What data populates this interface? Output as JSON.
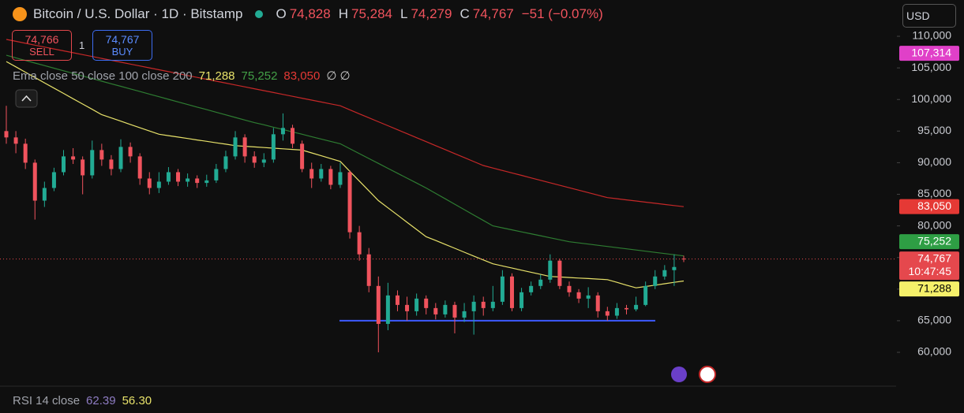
{
  "header": {
    "symbol": "Bitcoin / U.S. Dollar · 1D · Bitstamp",
    "o_label": "O",
    "open": "74,828",
    "h_label": "H",
    "high": "75,284",
    "l_label": "L",
    "low": "74,279",
    "c_label": "C",
    "close": "74,767",
    "change": "−51 (−0.07%)",
    "currency": "USD"
  },
  "trade": {
    "sell_price": "74,766",
    "sell": "SELL",
    "quantity": "1",
    "buy_price": "74,767",
    "buy": "BUY"
  },
  "indicator": {
    "name": "Ema close 50 close 100 close 200",
    "values": [
      "71,288",
      "75,252",
      "83,050"
    ],
    "icons": "∅ ∅"
  },
  "rsi": {
    "name": "RSI 14 close",
    "values": [
      "62.39",
      "56.30"
    ]
  },
  "chart_data": {
    "type": "candlestick",
    "up_color": "#22ab94",
    "down_color": "#f0535d",
    "candles": [
      {
        "o": 95000,
        "h": 99000,
        "l": 93000,
        "c": 94000
      },
      {
        "o": 94000,
        "h": 95000,
        "l": 91500,
        "c": 93000
      },
      {
        "o": 93000,
        "h": 93800,
        "l": 89000,
        "c": 90000
      },
      {
        "o": 90000,
        "h": 90500,
        "l": 81000,
        "c": 84000
      },
      {
        "o": 84000,
        "h": 87000,
        "l": 83000,
        "c": 86000
      },
      {
        "o": 86000,
        "h": 89200,
        "l": 85500,
        "c": 88500
      },
      {
        "o": 88500,
        "h": 92000,
        "l": 88000,
        "c": 91000
      },
      {
        "o": 91000,
        "h": 92300,
        "l": 89800,
        "c": 90500
      },
      {
        "o": 90500,
        "h": 91000,
        "l": 85000,
        "c": 88000
      },
      {
        "o": 88000,
        "h": 93500,
        "l": 87500,
        "c": 92000
      },
      {
        "o": 92000,
        "h": 93000,
        "l": 89500,
        "c": 90500
      },
      {
        "o": 90500,
        "h": 91200,
        "l": 88000,
        "c": 89000
      },
      {
        "o": 89000,
        "h": 93700,
        "l": 88500,
        "c": 92500
      },
      {
        "o": 92500,
        "h": 93200,
        "l": 90000,
        "c": 91000
      },
      {
        "o": 91000,
        "h": 91500,
        "l": 86500,
        "c": 87500
      },
      {
        "o": 87500,
        "h": 88500,
        "l": 85000,
        "c": 86000
      },
      {
        "o": 86000,
        "h": 88500,
        "l": 85200,
        "c": 87000
      },
      {
        "o": 87000,
        "h": 89300,
        "l": 86500,
        "c": 88500
      },
      {
        "o": 88500,
        "h": 89000,
        "l": 86300,
        "c": 87000
      },
      {
        "o": 87000,
        "h": 88300,
        "l": 86200,
        "c": 87500
      },
      {
        "o": 87500,
        "h": 88000,
        "l": 86000,
        "c": 86800
      },
      {
        "o": 86800,
        "h": 88100,
        "l": 86200,
        "c": 87200
      },
      {
        "o": 87200,
        "h": 89800,
        "l": 86800,
        "c": 89000
      },
      {
        "o": 89000,
        "h": 91900,
        "l": 88500,
        "c": 91000
      },
      {
        "o": 91000,
        "h": 95000,
        "l": 90500,
        "c": 94000
      },
      {
        "o": 94000,
        "h": 94500,
        "l": 90000,
        "c": 91000
      },
      {
        "o": 91000,
        "h": 91800,
        "l": 89200,
        "c": 90000
      },
      {
        "o": 90000,
        "h": 91500,
        "l": 89300,
        "c": 90500
      },
      {
        "o": 90500,
        "h": 95500,
        "l": 90000,
        "c": 94500
      },
      {
        "o": 94500,
        "h": 97800,
        "l": 93500,
        "c": 95500
      },
      {
        "o": 95500,
        "h": 96000,
        "l": 92300,
        "c": 93000
      },
      {
        "o": 93000,
        "h": 93500,
        "l": 88500,
        "c": 89000
      },
      {
        "o": 89000,
        "h": 90000,
        "l": 86000,
        "c": 87500
      },
      {
        "o": 87500,
        "h": 89800,
        "l": 87000,
        "c": 89000
      },
      {
        "o": 89000,
        "h": 89500,
        "l": 85800,
        "c": 86500
      },
      {
        "o": 86500,
        "h": 90000,
        "l": 86000,
        "c": 88500
      },
      {
        "o": 88500,
        "h": 88800,
        "l": 78000,
        "c": 79000
      },
      {
        "o": 79000,
        "h": 80000,
        "l": 74500,
        "c": 75500
      },
      {
        "o": 75500,
        "h": 76500,
        "l": 69500,
        "c": 70500
      },
      {
        "o": 70500,
        "h": 72000,
        "l": 60000,
        "c": 64500
      },
      {
        "o": 64500,
        "h": 71000,
        "l": 63500,
        "c": 69000
      },
      {
        "o": 69000,
        "h": 69800,
        "l": 66500,
        "c": 67500
      },
      {
        "o": 67500,
        "h": 68800,
        "l": 65000,
        "c": 66500
      },
      {
        "o": 66500,
        "h": 69300,
        "l": 65800,
        "c": 68500
      },
      {
        "o": 68500,
        "h": 69000,
        "l": 66000,
        "c": 67000
      },
      {
        "o": 67000,
        "h": 67800,
        "l": 65200,
        "c": 66000
      },
      {
        "o": 66000,
        "h": 68200,
        "l": 65500,
        "c": 67500
      },
      {
        "o": 67500,
        "h": 68000,
        "l": 63000,
        "c": 65500
      },
      {
        "o": 65500,
        "h": 67800,
        "l": 64800,
        "c": 66500
      },
      {
        "o": 66500,
        "h": 69000,
        "l": 62800,
        "c": 68000
      },
      {
        "o": 68000,
        "h": 68800,
        "l": 65800,
        "c": 67000
      },
      {
        "o": 67000,
        "h": 70500,
        "l": 66500,
        "c": 68000
      },
      {
        "o": 68000,
        "h": 73000,
        "l": 67500,
        "c": 72000
      },
      {
        "o": 72000,
        "h": 72500,
        "l": 66500,
        "c": 67000
      },
      {
        "o": 67000,
        "h": 70200,
        "l": 66500,
        "c": 69500
      },
      {
        "o": 69500,
        "h": 71200,
        "l": 69000,
        "c": 70500
      },
      {
        "o": 70500,
        "h": 72300,
        "l": 70000,
        "c": 71500
      },
      {
        "o": 71500,
        "h": 75500,
        "l": 71000,
        "c": 74500
      },
      {
        "o": 74500,
        "h": 74800,
        "l": 70000,
        "c": 70500
      },
      {
        "o": 70500,
        "h": 71200,
        "l": 68800,
        "c": 69500
      },
      {
        "o": 69500,
        "h": 70000,
        "l": 67800,
        "c": 68500
      },
      {
        "o": 68500,
        "h": 70300,
        "l": 67000,
        "c": 69000
      },
      {
        "o": 69000,
        "h": 69500,
        "l": 65500,
        "c": 66500
      },
      {
        "o": 66500,
        "h": 67200,
        "l": 65000,
        "c": 65800
      },
      {
        "o": 65800,
        "h": 67800,
        "l": 65300,
        "c": 67000
      },
      {
        "o": 67000,
        "h": 67500,
        "l": 66000,
        "c": 66800
      },
      {
        "o": 66800,
        "h": 68800,
        "l": 66500,
        "c": 67500
      },
      {
        "o": 67500,
        "h": 71200,
        "l": 67300,
        "c": 70500
      },
      {
        "o": 70500,
        "h": 73000,
        "l": 70000,
        "c": 72000
      },
      {
        "o": 72000,
        "h": 73800,
        "l": 71500,
        "c": 73000
      },
      {
        "o": 73000,
        "h": 75500,
        "l": 70500,
        "c": 73500
      },
      {
        "o": 74828,
        "h": 75284,
        "l": 74279,
        "c": 74767
      }
    ],
    "series": [
      {
        "color": "#e8e26a",
        "values": [
          106000,
          105160,
          104320,
          103480,
          102640,
          101800,
          100960,
          100120,
          99280,
          98440,
          97600,
          97080,
          96570,
          96050,
          95530,
          95020,
          94500,
          94280,
          94050,
          93830,
          93600,
          93380,
          93150,
          92930,
          92700,
          92600,
          92500,
          92400,
          92300,
          92200,
          92100,
          92000,
          91550,
          91100,
          90650,
          90200,
          88650,
          87100,
          85550,
          84000,
          82860,
          81720,
          80580,
          79440,
          78300,
          77690,
          77070,
          76460,
          75840,
          75230,
          74610,
          74000,
          73670,
          73330,
          73000,
          72670,
          72330,
          72000,
          71920,
          71830,
          71750,
          71670,
          71580,
          71500,
          71070,
          70630,
          70200,
          70420,
          70630,
          70850,
          71070,
          71288
        ]
      },
      {
        "color": "#2e7d32",
        "values": [
          107000,
          106590,
          106180,
          105770,
          105360,
          104950,
          104540,
          104130,
          103720,
          103310,
          102900,
          102490,
          102080,
          101670,
          101260,
          100850,
          100440,
          100030,
          99620,
          99210,
          98800,
          98390,
          97980,
          97570,
          97160,
          96750,
          96340,
          96000,
          95620,
          95250,
          94870,
          94500,
          94120,
          93750,
          93370,
          93000,
          92220,
          91440,
          90670,
          89890,
          89110,
          88330,
          87560,
          86780,
          86000,
          85140,
          84290,
          83430,
          82570,
          81710,
          80860,
          80000,
          79690,
          79380,
          79060,
          78750,
          78440,
          78120,
          77810,
          77500,
          77310,
          77120,
          76940,
          76750,
          76560,
          76370,
          76190,
          76000,
          75810,
          75620,
          75440,
          75252
        ]
      },
      {
        "color": "#c62828",
        "values": [
          109500,
          109200,
          108900,
          108600,
          108300,
          108000,
          107700,
          107400,
          107100,
          106800,
          106500,
          106200,
          105900,
          105600,
          105300,
          105000,
          104700,
          104400,
          104100,
          103800,
          103500,
          103200,
          102900,
          102600,
          102300,
          102000,
          101700,
          101400,
          101100,
          100800,
          100500,
          100200,
          99900,
          99600,
          99300,
          99000,
          98370,
          97740,
          97110,
          96480,
          95850,
          95220,
          94590,
          93960,
          93330,
          92700,
          92070,
          91440,
          90810,
          90180,
          89550,
          89160,
          88770,
          88380,
          87990,
          87600,
          87210,
          86820,
          86430,
          86040,
          85650,
          85260,
          84870,
          84480,
          84300,
          84120,
          83940,
          83760,
          83580,
          83400,
          83220,
          83050
        ]
      }
    ],
    "ylim": [
      54640,
      115740
    ],
    "yticks": [
      {
        "value": 110000,
        "label": "110,000"
      },
      {
        "value": 105000,
        "label": "105,000"
      },
      {
        "value": 100000,
        "label": "100,000"
      },
      {
        "value": 95000,
        "label": "95,000"
      },
      {
        "value": 90000,
        "label": "90,000"
      },
      {
        "value": 85000,
        "label": "85,000"
      },
      {
        "value": 80000,
        "label": "80,000"
      },
      {
        "value": 75000,
        "label": "75,000"
      },
      {
        "value": 70000,
        "label": "70,000"
      },
      {
        "value": 65000,
        "label": "65,000"
      },
      {
        "value": 60000,
        "label": "60,000"
      }
    ],
    "hline": {
      "value": 65000,
      "color": "#3d5afe"
    },
    "axis_tags": [
      {
        "value": 107314,
        "label": "107,314",
        "color": "#e040c8",
        "text_color": "#ffffff"
      },
      {
        "value": 83050,
        "label": "83,050",
        "color": "#e53935",
        "text_color": "#ffffff"
      },
      {
        "value": 75252,
        "label": "75,252",
        "color": "#2e9e44",
        "text_color": "#ffffff"
      },
      {
        "value": 74767,
        "label": "74,767",
        "countdown": "10:47:45",
        "color": "#e5484d",
        "text_color": "#ffffff"
      },
      {
        "value": 71288,
        "label": "71,288",
        "color": "#f5f06a",
        "text_color": "#000000"
      }
    ]
  }
}
